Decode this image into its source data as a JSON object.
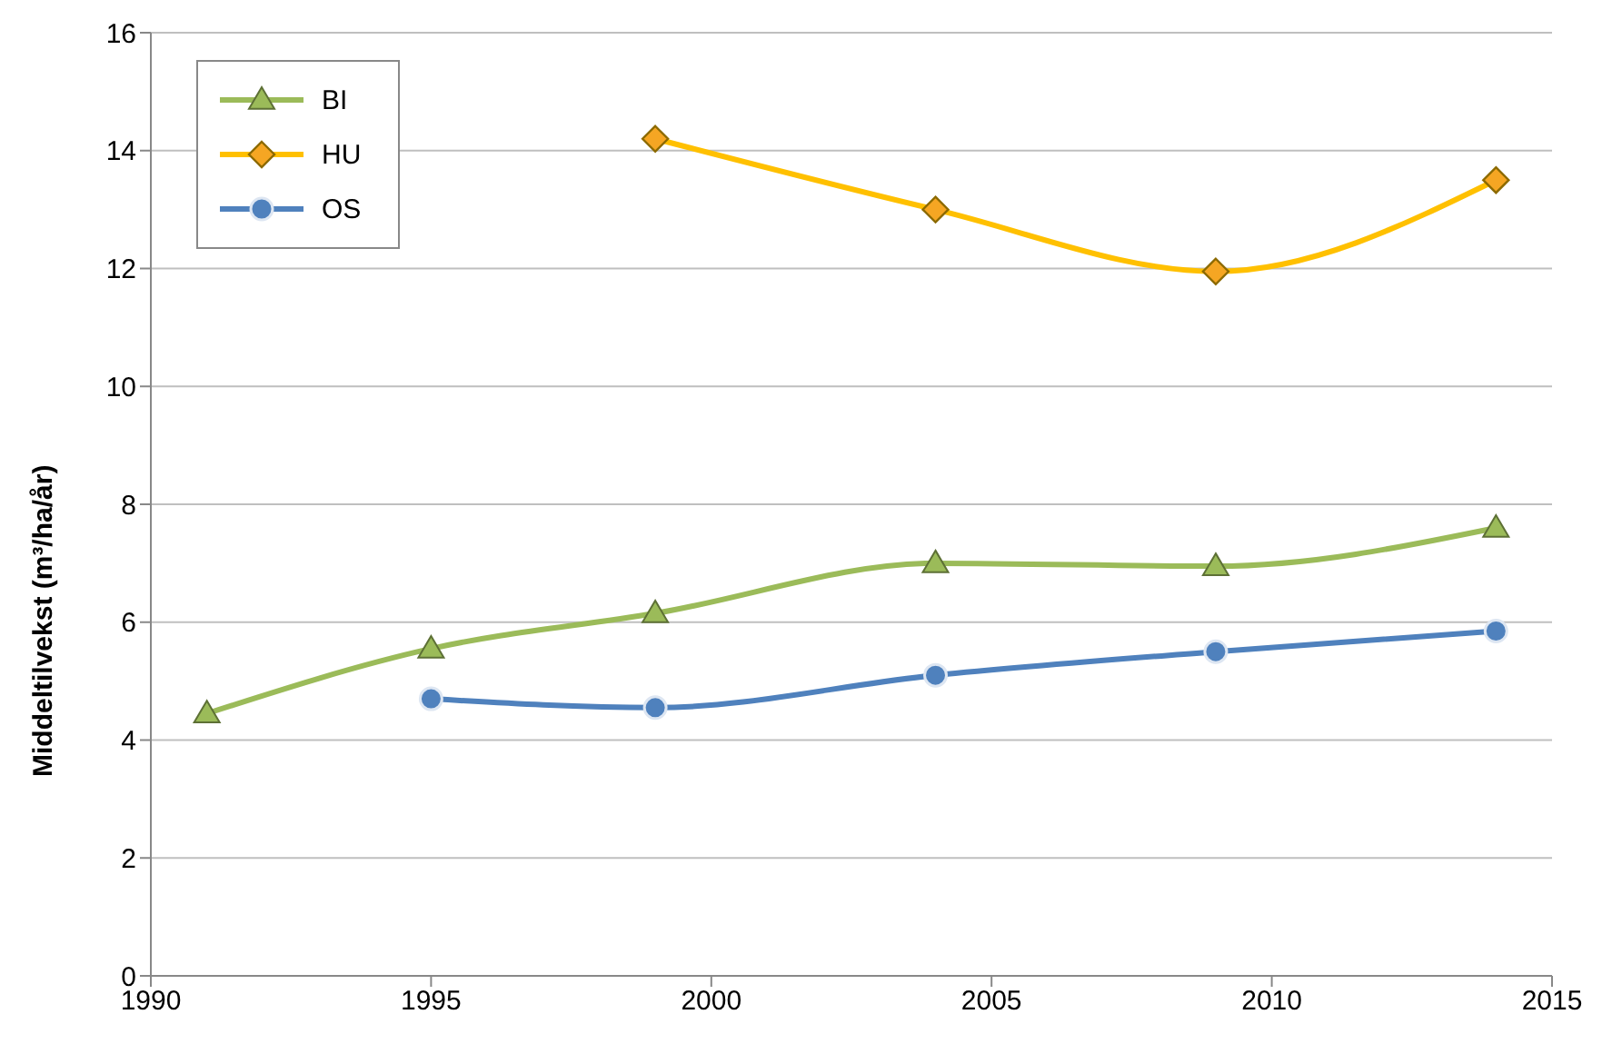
{
  "chart_data": {
    "type": "line",
    "ylabel": "Middeltilvekst (m³/ha/år)",
    "xlim": [
      1990,
      2015
    ],
    "xticks": [
      1990,
      1995,
      2000,
      2005,
      2010,
      2015
    ],
    "ylim": [
      0,
      16
    ],
    "yticks": [
      0,
      2,
      4,
      6,
      8,
      10,
      12,
      14,
      16
    ],
    "grid": "y",
    "legend": "top left",
    "series": [
      {
        "name": "BI",
        "color": "#9bbb59",
        "marker": "triangle",
        "x": [
          1991,
          1995,
          1999,
          2004,
          2009,
          2014
        ],
        "values": [
          4.45,
          5.55,
          6.15,
          7.0,
          6.95,
          7.6
        ]
      },
      {
        "name": "HU",
        "color": "#ffc000",
        "marker": "diamond",
        "x": [
          1999,
          2004,
          2009,
          2014
        ],
        "values": [
          14.2,
          13.0,
          11.95,
          13.5
        ]
      },
      {
        "name": "OS",
        "color": "#4f81bd",
        "marker": "circle",
        "x": [
          1995,
          1999,
          2004,
          2009,
          2014
        ],
        "values": [
          4.7,
          4.55,
          5.1,
          5.5,
          5.85
        ]
      }
    ]
  }
}
